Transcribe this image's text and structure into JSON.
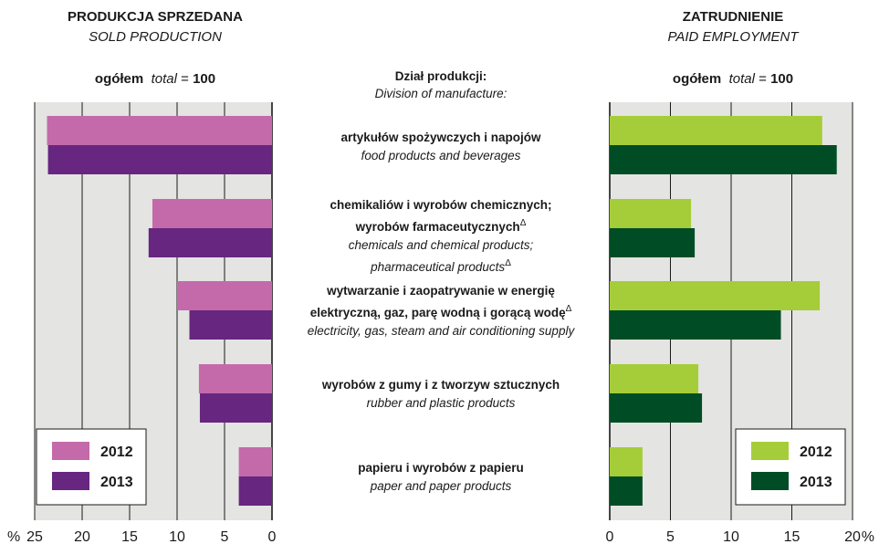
{
  "left": {
    "title_pl": "PRODUKCJA SPRZEDANA",
    "title_en": "SOLD PRODUCTION",
    "total_pl": "ogółem",
    "total_en": "total",
    "total_eq": "=",
    "total_value": "100"
  },
  "right": {
    "title_pl": "ZATRUDNIENIE",
    "title_en": "PAID EMPLOYMENT",
    "total_pl": "ogółem",
    "total_en": "total",
    "total_eq": "=",
    "total_value": "100"
  },
  "middle": {
    "header_pl": "Dział produkcji:",
    "header_en": "Division of manufacture:",
    "note_mark": "Δ",
    "categories": [
      {
        "pl": "artykułów spożywczych i napojów",
        "en": "food products and beverages"
      },
      {
        "pl_1": "chemikaliów i wyrobów chemicznych;",
        "pl_2": "wyrobów farmaceutycznych",
        "en_1": "chemicals and chemical products;",
        "en_2": "pharmaceutical products"
      },
      {
        "pl_1": "wytwarzanie i zaopatrywanie w energię",
        "pl_2": "elektryczną, gaz, parę wodną i gorącą wodę",
        "en": "electricity, gas, steam and air conditioning supply"
      },
      {
        "pl": "wyrobów z gumy i z tworzyw sztucznych",
        "en": "rubber and plastic products"
      },
      {
        "pl": "papieru i wyrobów z papieru",
        "en": "paper and paper products"
      }
    ]
  },
  "colors": {
    "panel_bg": "#e4e4e2",
    "grid": "#1a1a1a",
    "sold_2012": "#c46aaa",
    "sold_2013": "#67267f",
    "emp_2012": "#a5cd39",
    "emp_2013": "#004d25"
  },
  "chart_data": [
    {
      "type": "bar",
      "orientation": "horizontal",
      "direction": "right-to-left",
      "title": "PRODUKCJA SPRZEDANA / SOLD PRODUCTION",
      "categories": [
        "food products and beverages",
        "chemicals and chemical products; pharmaceutical products",
        "electricity, gas, steam and air conditioning supply",
        "rubber and plastic products",
        "paper and paper products"
      ],
      "series": [
        {
          "name": "2012",
          "values": [
            23.7,
            12.6,
            10.0,
            7.7,
            3.5
          ]
        },
        {
          "name": "2013",
          "values": [
            23.6,
            13.0,
            8.7,
            7.6,
            3.5
          ]
        }
      ],
      "xlim": [
        0,
        25
      ],
      "xticks": [
        "25",
        "20",
        "15",
        "10",
        "5",
        "0"
      ],
      "axis_unit": "%",
      "grid": true,
      "legend": "bottom-left"
    },
    {
      "type": "bar",
      "orientation": "horizontal",
      "direction": "left-to-right",
      "title": "ZATRUDNIENIE / PAID EMPLOYMENT",
      "categories": [
        "food products and beverages",
        "chemicals and chemical products; pharmaceutical products",
        "electricity, gas, steam and air conditioning supply",
        "rubber and plastic products",
        "paper and paper products"
      ],
      "series": [
        {
          "name": "2012",
          "values": [
            17.5,
            6.7,
            17.3,
            7.3,
            2.7
          ]
        },
        {
          "name": "2013",
          "values": [
            18.7,
            7.0,
            14.1,
            7.6,
            2.7
          ]
        }
      ],
      "xlim": [
        0,
        20
      ],
      "xticks": [
        "0",
        "5",
        "10",
        "15",
        "20"
      ],
      "axis_unit": "%",
      "grid": true,
      "legend": "bottom-right"
    }
  ]
}
